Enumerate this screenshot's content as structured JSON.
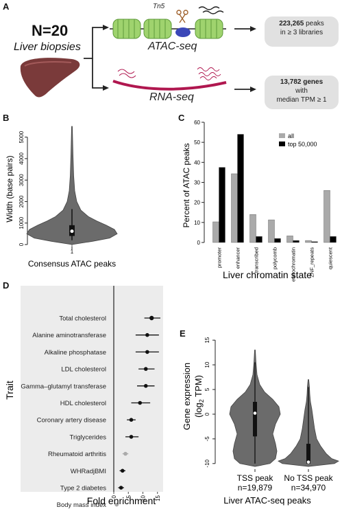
{
  "panelA": {
    "letter": "A",
    "n_label": "N=20",
    "subtitle": "Liver biopsies",
    "tn5_label": "Tn5",
    "atac_label": "ATAC-seq",
    "rna_label": "RNA-seq",
    "atac_result_bold": "223,265",
    "atac_result_rest": " peaks",
    "atac_result_line2": "in ≥ 3 libraries",
    "rna_result_bold1": "13,782 genes",
    "rna_result_line2": "with",
    "rna_result_line3": "median TPM ≥ 1",
    "colors": {
      "nucleosome": "#9fd36e",
      "tn5": "#3b47b8",
      "rna": "#b0174f",
      "liver": "#7a3a3a"
    }
  },
  "panelB": {
    "letter": "B",
    "ylabel": "Width (base pairs)",
    "xlabel": "Consensus ATAC peaks",
    "xtick": "1",
    "yticks": [
      "0",
      "1000",
      "2000",
      "3000",
      "4000",
      "5000"
    ],
    "color": "#6b6b6b"
  },
  "panelC": {
    "letter": "C",
    "ylabel": "Percent of ATAC peaks",
    "xlabel": "Liver chromatin state",
    "yticks": [
      "0",
      "10",
      "20",
      "30",
      "40",
      "50",
      "60"
    ],
    "legend": [
      "all",
      "top 50,000"
    ],
    "colors": {
      "all": "#aaaaaa",
      "top": "#000000"
    }
  },
  "panelD": {
    "letter": "D",
    "ylabel": "Trait",
    "xlabel": "Fold enrichment",
    "xticks": [
      "0",
      "5",
      "10",
      "15"
    ]
  },
  "panelE": {
    "letter": "E",
    "ylabel_line1": "Gene expression",
    "ylabel_line2": "(log",
    "ylabel_sub": "2",
    "ylabel_line2b": " TPM)",
    "xlabel": "Liver ATAC-seq peaks",
    "yticks": [
      "-10",
      "-5",
      "0",
      "5",
      "10",
      "15"
    ],
    "groups": [
      {
        "label": "TSS peak",
        "n": "n=19,879"
      },
      {
        "label": "No TSS peak",
        "n": "n=34,970"
      }
    ],
    "color": "#6b6b6b"
  },
  "chart_data": [
    {
      "type": "violin",
      "panel": "B",
      "title": "",
      "xlabel": "Consensus ATAC peaks",
      "ylabel": "Width (base pairs)",
      "ylim": [
        0,
        5500
      ],
      "categories": [
        "1"
      ],
      "box": {
        "q1": 400,
        "median": 620,
        "q3": 900,
        "whisker_low": 200,
        "whisker_high": 1650,
        "max": 5500
      }
    },
    {
      "type": "bar",
      "panel": "C",
      "title": "",
      "xlabel": "Liver chromatin state",
      "ylabel": "Percent of ATAC peaks",
      "ylim": [
        0,
        60
      ],
      "categories": [
        "promoter",
        "enhancer",
        "transcribed",
        "polycomb",
        "heterochromatin",
        "ZNF_repeats",
        "quiescent"
      ],
      "series": [
        {
          "name": "all",
          "values": [
            10.3,
            34.3,
            14.0,
            11.3,
            3.3,
            1.0,
            26.0
          ]
        },
        {
          "name": "top 50,000",
          "values": [
            37.5,
            54.0,
            3.0,
            2.0,
            1.0,
            0.4,
            3.0
          ]
        }
      ],
      "legend_position": "top-right",
      "grid": false
    },
    {
      "type": "scatter",
      "panel": "D",
      "title": "",
      "xlabel": "Fold enrichment",
      "ylabel": "Trait",
      "xlim": [
        0,
        17
      ],
      "categories": [
        "Total cholesterol",
        "Alanine aminotransferase",
        "Alkaline phosphatase",
        "LDL cholesterol",
        "Gamma–glutamyl transferase",
        "HDL cholesterol",
        "Coronary artery disease",
        "Triglycerides",
        "Rheumatoid arthritis",
        "WHRadjBMI",
        "Type 2 diabetes",
        "Body mass index"
      ],
      "values": [
        13.0,
        11.5,
        11.5,
        11.0,
        11.0,
        9.0,
        6.0,
        6.0,
        4.0,
        3.0,
        2.5,
        1.0
      ],
      "ci_low": [
        10.5,
        7.5,
        7.5,
        8.5,
        8.0,
        6.0,
        4.5,
        4.0,
        3.0,
        2.0,
        1.5,
        0.5
      ],
      "ci_high": [
        16.0,
        15.5,
        15.5,
        14.0,
        14.0,
        12.5,
        7.5,
        8.5,
        5.0,
        4.0,
        3.5,
        1.5
      ],
      "significant": [
        true,
        true,
        true,
        true,
        true,
        true,
        true,
        true,
        false,
        true,
        true,
        false
      ],
      "grid": false
    },
    {
      "type": "violin",
      "panel": "E",
      "title": "",
      "xlabel": "Liver ATAC-seq peaks",
      "ylabel": "Gene expression (log2 TPM)",
      "ylim": [
        -11,
        16
      ],
      "categories": [
        "TSS peak",
        "No TSS peak"
      ],
      "boxes": [
        {
          "q1": -4.5,
          "median": 0.2,
          "q3": 2.5,
          "whisker_low": -10,
          "whisker_high": 10.5
        },
        {
          "q1": -10,
          "median": -9.7,
          "q3": -6,
          "whisker_low": -10,
          "whisker_high": 5.5
        }
      ]
    }
  ]
}
